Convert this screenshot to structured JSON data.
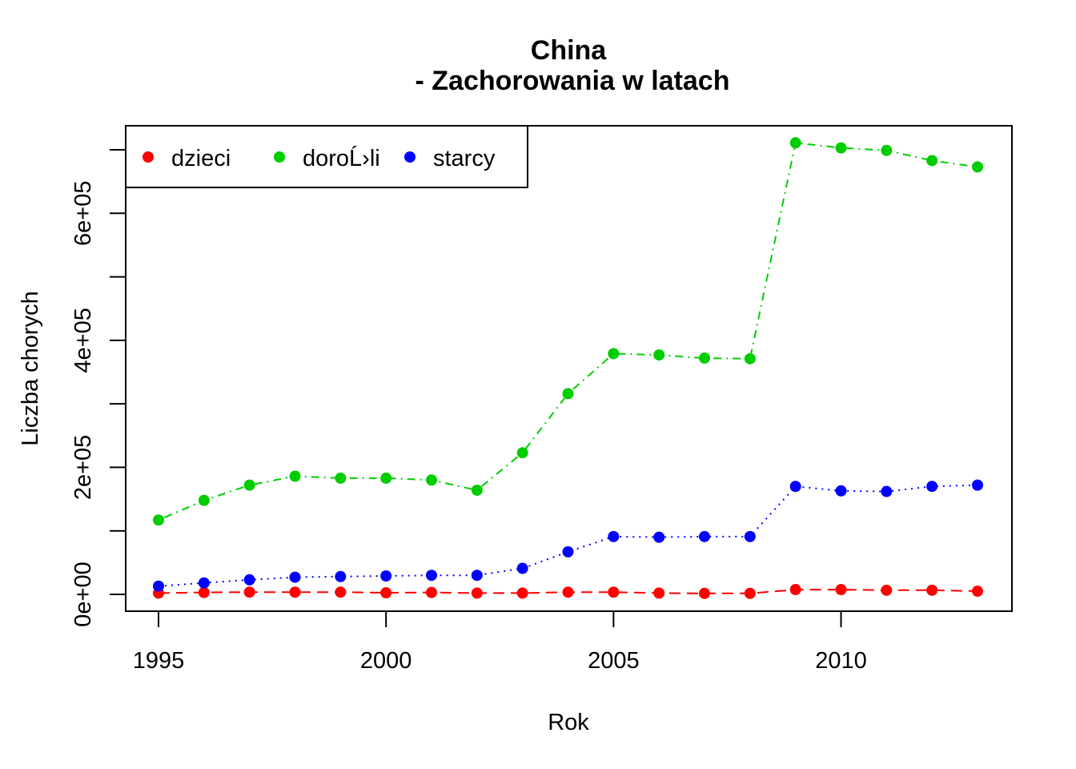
{
  "chart_data": {
    "type": "line",
    "title": "China",
    "subtitle": "- Zachorowania w latach",
    "xlabel": "Rok",
    "ylabel": "Liczba chorych",
    "x": [
      1995,
      1996,
      1997,
      1998,
      1999,
      2000,
      2001,
      2002,
      2003,
      2004,
      2005,
      2006,
      2007,
      2008,
      2009,
      2010,
      2011,
      2012,
      2013
    ],
    "xlim": [
      1995,
      2013
    ],
    "ylim": [
      0,
      700000
    ],
    "x_ticks": [
      1995,
      2000,
      2005,
      2010
    ],
    "x_tick_labels": [
      "1995",
      "2000",
      "2005",
      "2010"
    ],
    "y_ticks": [
      0,
      100000,
      200000,
      300000,
      400000,
      500000,
      600000,
      700000
    ],
    "y_tick_labels": [
      "0e+00",
      "",
      "2e+05",
      "",
      "4e+05",
      "",
      "6e+05",
      ""
    ],
    "grid": false,
    "legend_position": "top-left",
    "series": [
      {
        "name": "dzieci",
        "color": "#ff0000",
        "line_style": "dashed",
        "values": [
          2000,
          3000,
          3500,
          3500,
          3500,
          2500,
          3000,
          2000,
          2000,
          3500,
          3500,
          2000,
          1500,
          1500,
          7500,
          7500,
          6500,
          6500,
          5000
        ]
      },
      {
        "name": "doroĹ›li",
        "color": "#00cd00",
        "line_style": "dotdash",
        "values": [
          117000,
          148000,
          172000,
          186000,
          183000,
          183000,
          180000,
          164000,
          223000,
          316000,
          379000,
          377000,
          372000,
          371000,
          711000,
          703000,
          699000,
          683000,
          673000
        ]
      },
      {
        "name": "starcy",
        "color": "#0000ff",
        "line_style": "dotted",
        "values": [
          13000,
          18000,
          23000,
          27000,
          28000,
          29000,
          30000,
          30000,
          41000,
          67000,
          91000,
          90000,
          91000,
          91000,
          170000,
          163000,
          162000,
          170000,
          172000
        ]
      }
    ]
  }
}
